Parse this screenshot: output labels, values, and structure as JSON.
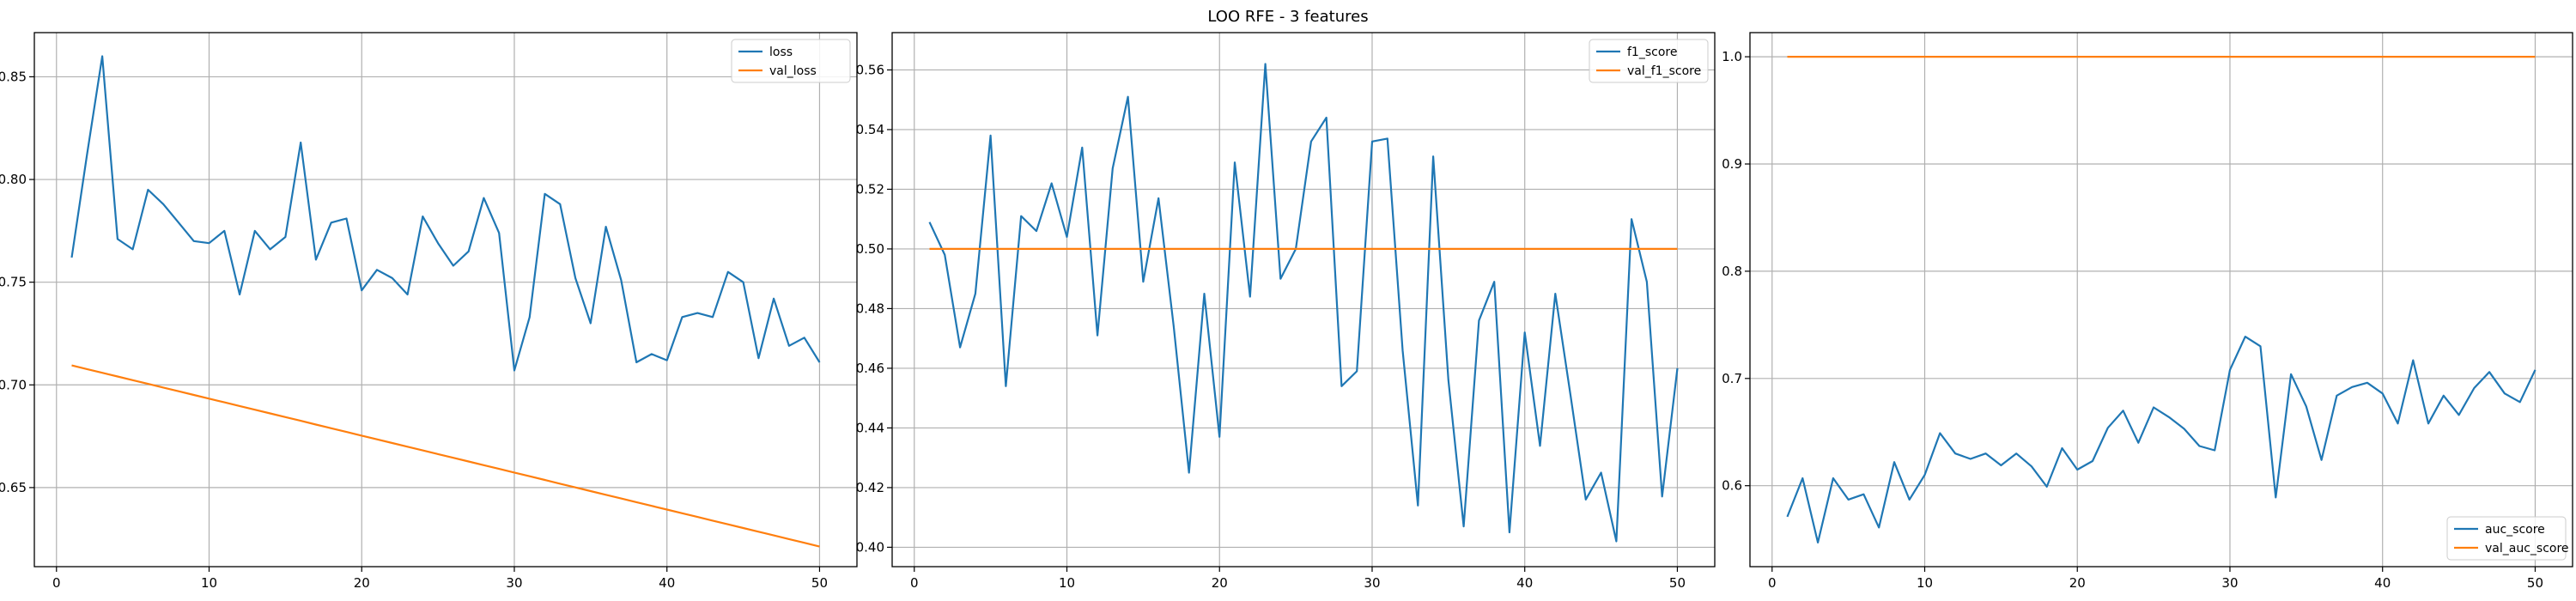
{
  "figure": {
    "title": "LOO RFE - 3 features"
  },
  "colors": {
    "series1": "#1f77b4",
    "series2": "#ff7f0e",
    "grid": "#b0b0b0",
    "axes": "#000000"
  },
  "chart_data": [
    {
      "type": "line",
      "title": "",
      "xlabel": "",
      "ylabel": "",
      "xlim": [
        -1.45,
        52.45
      ],
      "ylim": [
        0.6115,
        0.8715
      ],
      "xticks": [
        0,
        10,
        20,
        30,
        40,
        50
      ],
      "yticks": [
        0.65,
        0.7,
        0.75,
        0.8,
        0.85
      ],
      "ytick_format": 2,
      "grid": true,
      "legend": "upper right",
      "x": [
        1,
        2,
        3,
        4,
        5,
        6,
        7,
        8,
        9,
        10,
        11,
        12,
        13,
        14,
        15,
        16,
        17,
        18,
        19,
        20,
        21,
        22,
        23,
        24,
        25,
        26,
        27,
        28,
        29,
        30,
        31,
        32,
        33,
        34,
        35,
        36,
        37,
        38,
        39,
        40,
        41,
        42,
        43,
        44,
        45,
        46,
        47,
        48,
        49,
        50
      ],
      "series": [
        {
          "name": "loss",
          "color": "#1f77b4",
          "values": [
            0.762,
            0.812,
            0.86,
            0.771,
            0.766,
            0.795,
            0.788,
            0.779,
            0.77,
            0.769,
            0.775,
            0.744,
            0.775,
            0.766,
            0.772,
            0.818,
            0.761,
            0.779,
            0.781,
            0.746,
            0.756,
            0.752,
            0.744,
            0.782,
            0.769,
            0.758,
            0.765,
            0.791,
            0.774,
            0.707,
            0.733,
            0.793,
            0.788,
            0.752,
            0.73,
            0.777,
            0.751,
            0.711,
            0.715,
            0.712,
            0.733,
            0.735,
            0.733,
            0.755,
            0.75,
            0.713,
            0.742,
            0.719,
            0.723,
            0.711
          ]
        },
        {
          "name": "val_loss",
          "color": "#ff7f0e",
          "values": [
            0.7095,
            0.7077,
            0.7059,
            0.7041,
            0.7023,
            0.7005,
            0.6987,
            0.6969,
            0.6951,
            0.6933,
            0.6915,
            0.6897,
            0.6879,
            0.6861,
            0.6843,
            0.6825,
            0.6807,
            0.6789,
            0.6771,
            0.6753,
            0.6735,
            0.6717,
            0.6699,
            0.6681,
            0.6663,
            0.6645,
            0.6627,
            0.6609,
            0.6591,
            0.6573,
            0.6555,
            0.6537,
            0.6519,
            0.6501,
            0.6483,
            0.6465,
            0.6447,
            0.6429,
            0.6411,
            0.6393,
            0.6375,
            0.6357,
            0.6339,
            0.6321,
            0.6303,
            0.6285,
            0.6267,
            0.6249,
            0.6231,
            0.6213
          ]
        }
      ]
    },
    {
      "type": "line",
      "title": "",
      "xlabel": "",
      "ylabel": "",
      "xlim": [
        -1.45,
        52.45
      ],
      "ylim": [
        0.3935,
        0.5725
      ],
      "xticks": [
        0,
        10,
        20,
        30,
        40,
        50
      ],
      "yticks": [
        0.4,
        0.42,
        0.44,
        0.46,
        0.48,
        0.5,
        0.52,
        0.54,
        0.56
      ],
      "ytick_format": 2,
      "grid": true,
      "legend": "upper right",
      "x": [
        1,
        2,
        3,
        4,
        5,
        6,
        7,
        8,
        9,
        10,
        11,
        12,
        13,
        14,
        15,
        16,
        17,
        18,
        19,
        20,
        21,
        22,
        23,
        24,
        25,
        26,
        27,
        28,
        29,
        30,
        31,
        32,
        33,
        34,
        35,
        36,
        37,
        38,
        39,
        40,
        41,
        42,
        43,
        44,
        45,
        46,
        47,
        48,
        49,
        50
      ],
      "series": [
        {
          "name": "f1_score",
          "color": "#1f77b4",
          "values": [
            0.509,
            0.498,
            0.467,
            0.485,
            0.538,
            0.454,
            0.511,
            0.506,
            0.522,
            0.504,
            0.534,
            0.471,
            0.527,
            0.551,
            0.489,
            0.517,
            0.474,
            0.425,
            0.485,
            0.437,
            0.529,
            0.484,
            0.562,
            0.49,
            0.5,
            0.536,
            0.544,
            0.454,
            0.459,
            0.536,
            0.537,
            0.466,
            0.414,
            0.531,
            0.456,
            0.407,
            0.476,
            0.489,
            0.405,
            0.472,
            0.434,
            0.485,
            0.451,
            0.416,
            0.425,
            0.402,
            0.51,
            0.489,
            0.417,
            0.46
          ]
        },
        {
          "name": "val_f1_score",
          "color": "#ff7f0e",
          "values": [
            0.5,
            0.5,
            0.5,
            0.5,
            0.5,
            0.5,
            0.5,
            0.5,
            0.5,
            0.5,
            0.5,
            0.5,
            0.5,
            0.5,
            0.5,
            0.5,
            0.5,
            0.5,
            0.5,
            0.5,
            0.5,
            0.5,
            0.5,
            0.5,
            0.5,
            0.5,
            0.5,
            0.5,
            0.5,
            0.5,
            0.5,
            0.5,
            0.5,
            0.5,
            0.5,
            0.5,
            0.5,
            0.5,
            0.5,
            0.5,
            0.5,
            0.5,
            0.5,
            0.5,
            0.5,
            0.5,
            0.5,
            0.5,
            0.5,
            0.5
          ]
        }
      ]
    },
    {
      "type": "line",
      "title": "",
      "xlabel": "",
      "ylabel": "",
      "xlim": [
        -1.45,
        52.45
      ],
      "ylim": [
        0.5245,
        1.0225
      ],
      "xticks": [
        0,
        10,
        20,
        30,
        40,
        50
      ],
      "yticks": [
        0.6,
        0.7,
        0.8,
        0.9,
        1.0
      ],
      "ytick_format": 1,
      "grid": true,
      "legend": "lower right",
      "x": [
        1,
        2,
        3,
        4,
        5,
        6,
        7,
        8,
        9,
        10,
        11,
        12,
        13,
        14,
        15,
        16,
        17,
        18,
        19,
        20,
        21,
        22,
        23,
        24,
        25,
        26,
        27,
        28,
        29,
        30,
        31,
        32,
        33,
        34,
        35,
        36,
        37,
        38,
        39,
        40,
        41,
        42,
        43,
        44,
        45,
        46,
        47,
        48,
        49,
        50
      ],
      "series": [
        {
          "name": "auc_score",
          "color": "#1f77b4",
          "values": [
            0.571,
            0.607,
            0.547,
            0.607,
            0.587,
            0.592,
            0.561,
            0.622,
            0.587,
            0.61,
            0.649,
            0.63,
            0.625,
            0.63,
            0.619,
            0.63,
            0.618,
            0.599,
            0.635,
            0.615,
            0.623,
            0.654,
            0.67,
            0.64,
            0.673,
            0.664,
            0.653,
            0.637,
            0.633,
            0.708,
            0.739,
            0.73,
            0.589,
            0.704,
            0.674,
            0.624,
            0.684,
            0.692,
            0.696,
            0.686,
            0.658,
            0.717,
            0.658,
            0.684,
            0.666,
            0.691,
            0.706,
            0.686,
            0.678,
            0.708
          ]
        },
        {
          "name": "val_auc_score",
          "color": "#ff7f0e",
          "values": [
            1.0,
            1.0,
            1.0,
            1.0,
            1.0,
            1.0,
            1.0,
            1.0,
            1.0,
            1.0,
            1.0,
            1.0,
            1.0,
            1.0,
            1.0,
            1.0,
            1.0,
            1.0,
            1.0,
            1.0,
            1.0,
            1.0,
            1.0,
            1.0,
            1.0,
            1.0,
            1.0,
            1.0,
            1.0,
            1.0,
            1.0,
            1.0,
            1.0,
            1.0,
            1.0,
            1.0,
            1.0,
            1.0,
            1.0,
            1.0,
            1.0,
            1.0,
            1.0,
            1.0,
            1.0,
            1.0,
            1.0,
            1.0,
            1.0,
            1.0
          ]
        }
      ]
    }
  ]
}
